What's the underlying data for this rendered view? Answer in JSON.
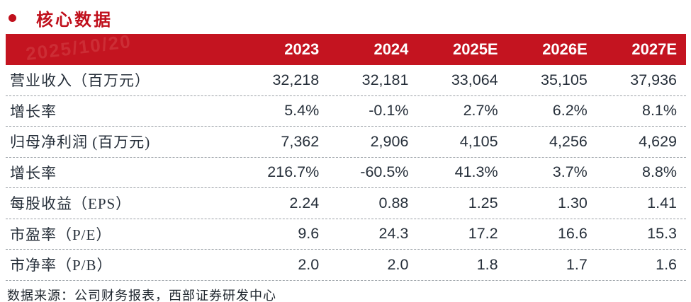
{
  "page": {
    "title": "核心数据",
    "watermark": "2025/10/20",
    "source_note": "数据来源：公司财务报表，西部证券研发中心"
  },
  "colors": {
    "header_bg": "#c41420",
    "title_red": "#c0101c",
    "body_text": "#262f3a",
    "divider_gray": "#9aa0a6",
    "header_text": "#ffffff"
  },
  "chart_data": {
    "type": "table",
    "title": "核心数据",
    "columns": [
      "",
      "2023",
      "2024",
      "2025E",
      "2026E",
      "2027E"
    ],
    "rows": [
      {
        "label": "营业收入（百万元）",
        "values": [
          "32,218",
          "32,181",
          "33,064",
          "35,105",
          "37,936"
        ]
      },
      {
        "label": "增长率",
        "values": [
          "5.4%",
          "-0.1%",
          "2.7%",
          "6.2%",
          "8.1%"
        ]
      },
      {
        "label": "归母净利润 (百万元)",
        "values": [
          "7,362",
          "2,906",
          "4,105",
          "4,256",
          "4,629"
        ]
      },
      {
        "label": "增长率",
        "values": [
          "216.7%",
          "-60.5%",
          "41.3%",
          "3.7%",
          "8.8%"
        ]
      },
      {
        "label": "每股收益（EPS）",
        "values": [
          "2.24",
          "0.88",
          "1.25",
          "1.30",
          "1.41"
        ]
      },
      {
        "label": "市盈率（P/E）",
        "values": [
          "9.6",
          "24.3",
          "17.2",
          "16.6",
          "15.3"
        ]
      },
      {
        "label": "市净率（P/B）",
        "values": [
          "2.0",
          "2.0",
          "1.8",
          "1.7",
          "1.6"
        ]
      }
    ],
    "layout": {
      "header_style": "red-band",
      "row_divider": "dashed",
      "value_alignment": "right"
    }
  }
}
